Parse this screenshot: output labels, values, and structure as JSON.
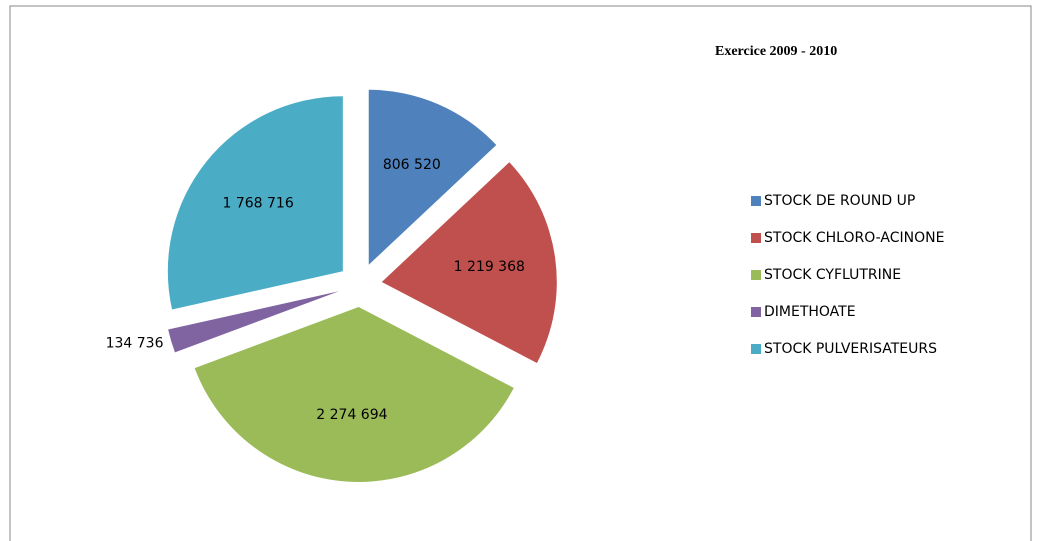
{
  "chart_data": {
    "type": "pie",
    "title": "Exercice 2009 - 2010",
    "categories": [
      "STOCK DE ROUND UP",
      "STOCK CHLORO-ACINONE",
      "STOCK CYFLUTRINE",
      "DIMETHOATE",
      "STOCK PULVERISATEURS"
    ],
    "values": [
      806520,
      1219368,
      2274694,
      134736,
      1768716
    ],
    "value_labels": [
      "806 520",
      "1 219 368",
      "2 274 694",
      "134 736",
      "1 768 716"
    ],
    "colors": [
      "#4f81bd",
      "#c0504d",
      "#9bbb59",
      "#8064a2",
      "#4bacc6"
    ],
    "legend": "right"
  }
}
